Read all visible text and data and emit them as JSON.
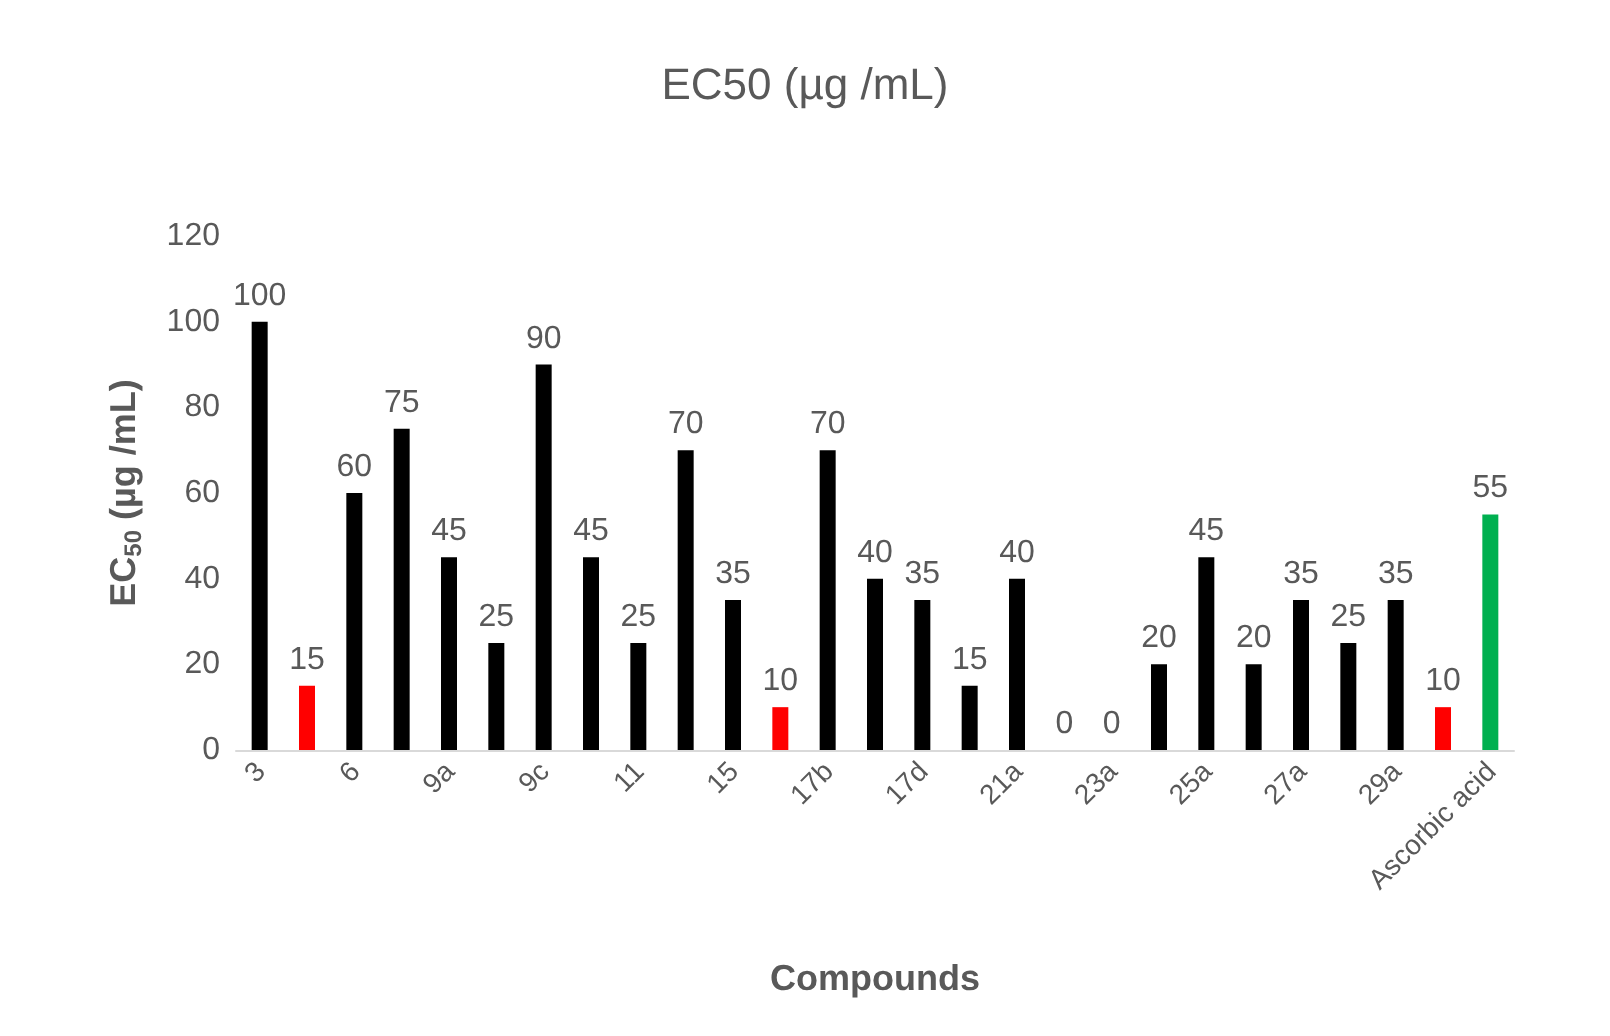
{
  "chart_data": {
    "type": "bar",
    "title": "EC50 (µg /mL)",
    "xlabel": "Compounds",
    "ylabel": "EC$_{50}$ (µg /mL)",
    "categories": [
      "3",
      null,
      "6",
      null,
      "9a",
      null,
      "9c",
      null,
      "11",
      null,
      "15",
      null,
      "17b",
      null,
      "17d",
      null,
      "21a",
      null,
      "23a",
      null,
      "25a",
      null,
      "27a",
      null,
      "29a",
      null,
      "Ascorbic acid"
    ],
    "values": [
      100,
      15,
      60,
      75,
      45,
      25,
      90,
      45,
      25,
      70,
      35,
      10,
      70,
      40,
      35,
      15,
      40,
      0,
      0,
      20,
      45,
      20,
      35,
      25,
      35,
      10,
      55
    ],
    "colors": [
      "#000000",
      "#ff0000",
      "#000000",
      "#000000",
      "#000000",
      "#000000",
      "#000000",
      "#000000",
      "#000000",
      "#000000",
      "#000000",
      "#ff0000",
      "#000000",
      "#000000",
      "#000000",
      "#000000",
      "#000000",
      "#000000",
      "#000000",
      "#000000",
      "#000000",
      "#000000",
      "#000000",
      "#000000",
      "#000000",
      "#ff0000",
      "#00b050"
    ],
    "ylim": [
      0,
      120
    ],
    "yticks": [
      0,
      20,
      40,
      60,
      80,
      100,
      120
    ],
    "data_labels": true
  }
}
